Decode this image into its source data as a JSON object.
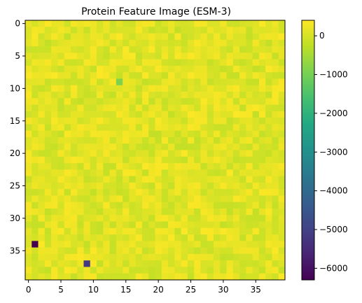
{
  "chart_data": {
    "type": "heatmap",
    "title": "Protein Feature Image (ESM-3)",
    "rows": 40,
    "cols": 40,
    "xlim": [
      -0.5,
      39.5
    ],
    "ylim": [
      39.5,
      -0.5
    ],
    "x_ticks": [
      0,
      5,
      10,
      15,
      20,
      25,
      30,
      35
    ],
    "y_ticks": [
      0,
      5,
      10,
      15,
      20,
      25,
      30,
      35
    ],
    "colormap": "viridis",
    "color_range": [
      -6300,
      400
    ],
    "colorbar_ticks": [
      0,
      -1000,
      -2000,
      -3000,
      -4000,
      -5000,
      -6000
    ],
    "base_value_range": [
      -200,
      380
    ],
    "outliers": [
      {
        "row": 34,
        "col": 1,
        "value": -6300
      },
      {
        "row": 37,
        "col": 9,
        "value": -5200
      },
      {
        "row": 8,
        "col": 11,
        "value": 400
      },
      {
        "row": 9,
        "col": 14,
        "value": -900
      }
    ]
  }
}
